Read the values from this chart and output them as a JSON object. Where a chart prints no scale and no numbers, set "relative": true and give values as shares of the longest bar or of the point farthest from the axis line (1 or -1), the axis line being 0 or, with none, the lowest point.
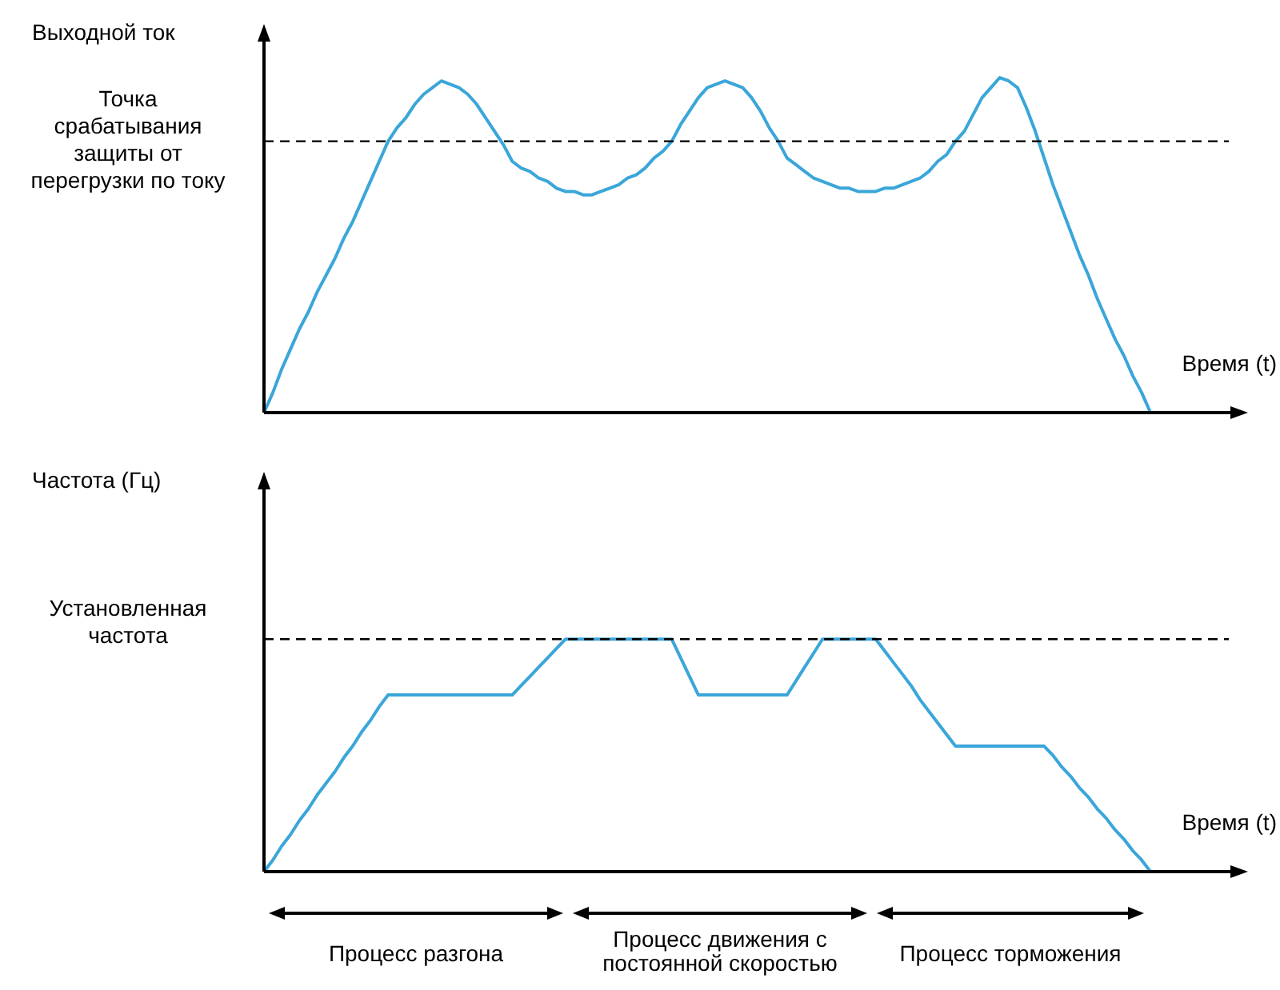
{
  "chart_data": [
    {
      "type": "line",
      "relative": true,
      "ylabel": "Выходной ток",
      "xlabel": "Время (t)",
      "categories": [
        null,
        null,
        null,
        null,
        null,
        null,
        null,
        null,
        null,
        null,
        null,
        null,
        null,
        null,
        null,
        null,
        null,
        null,
        null,
        null,
        null,
        null,
        null,
        null,
        null,
        null,
        null,
        null,
        null,
        null,
        null,
        null,
        null,
        null,
        null,
        null,
        null,
        null,
        null,
        null,
        null,
        null,
        null,
        null,
        null,
        null,
        null,
        null,
        null,
        null,
        null,
        null,
        null,
        null,
        null,
        null,
        null,
        null,
        null,
        null,
        null,
        null,
        null,
        null,
        null,
        null,
        null,
        null,
        null,
        null,
        null,
        null,
        null,
        null,
        null,
        null,
        null,
        null,
        null,
        null,
        null,
        null,
        null,
        null,
        null,
        null,
        null,
        null,
        null,
        null,
        null,
        null,
        null,
        null,
        null,
        null,
        null,
        null,
        null,
        null,
        null,
        null,
        null,
        null,
        null,
        null,
        null,
        null,
        null,
        null,
        null,
        null
      ],
      "series": [
        {
          "color": "#3aa6d9",
          "values": [
            0,
            0.06,
            0.13,
            0.19,
            0.25,
            0.3,
            0.36,
            0.41,
            0.46,
            0.52,
            0.57,
            0.63,
            0.69,
            0.75,
            0.81,
            0.85,
            0.88,
            0.92,
            0.95,
            0.97,
            0.99,
            0.98,
            0.97,
            0.95,
            0.92,
            0.88,
            0.84,
            0.8,
            0.75,
            0.73,
            0.72,
            0.7,
            0.69,
            0.67,
            0.66,
            0.66,
            0.65,
            0.65,
            0.66,
            0.67,
            0.68,
            0.7,
            0.71,
            0.73,
            0.76,
            0.78,
            0.81,
            0.86,
            0.9,
            0.94,
            0.97,
            0.98,
            0.99,
            0.98,
            0.97,
            0.94,
            0.9,
            0.85,
            0.81,
            0.76,
            0.74,
            0.72,
            0.7,
            0.69,
            0.68,
            0.67,
            0.67,
            0.66,
            0.66,
            0.66,
            0.67,
            0.67,
            0.68,
            0.69,
            0.7,
            0.72,
            0.75,
            0.77,
            0.81,
            0.84,
            0.89,
            0.94,
            0.97,
            1,
            0.99,
            0.97,
            0.91,
            0.84,
            0.76,
            0.68,
            0.61,
            0.54,
            0.47,
            0.41,
            0.34,
            0.28,
            0.22,
            0.17,
            0.11,
            0.06,
            0,
            null,
            null,
            null,
            null,
            null,
            null,
            null,
            null,
            null,
            null,
            null
          ]
        }
      ],
      "ref_lines": [
        {
          "axis": "y",
          "value": 0.81,
          "label": "Точка срабатывания защиты от перегрузки по току",
          "color": "#000000",
          "line_style": "dashed"
        }
      ]
    },
    {
      "type": "line",
      "relative": true,
      "ylabel": "Частота (Гц)",
      "xlabel": "Время (t)",
      "categories": [
        null,
        null,
        null,
        null,
        null,
        null,
        null,
        null,
        null,
        null,
        null,
        null,
        null,
        null,
        null,
        null,
        null,
        null,
        null,
        null,
        null,
        null,
        null,
        null,
        null,
        null,
        null,
        null,
        null,
        null,
        null,
        null,
        null,
        null,
        null,
        null,
        null,
        null,
        null,
        null,
        null,
        null,
        null,
        null,
        null,
        null,
        null,
        null,
        null,
        null,
        null,
        null,
        null,
        null,
        null,
        null,
        null,
        null,
        null,
        null,
        null,
        null,
        null,
        null,
        null,
        null,
        null,
        null,
        null,
        null,
        null,
        null,
        null,
        null,
        null,
        null,
        null,
        null,
        null,
        null,
        null,
        null,
        null,
        null,
        null,
        null,
        null,
        null,
        null,
        null,
        null,
        null,
        null,
        null,
        null,
        null,
        null,
        null,
        null,
        null,
        null,
        null,
        null,
        null,
        null,
        null,
        null,
        null,
        null,
        null,
        null,
        null
      ],
      "series": [
        {
          "color": "#3aa6d9",
          "values": [
            0,
            0.05,
            0.11,
            0.16,
            0.22,
            0.27,
            0.33,
            0.38,
            0.43,
            0.49,
            0.54,
            0.6,
            0.65,
            0.71,
            0.76,
            0.76,
            0.76,
            0.76,
            0.76,
            0.76,
            0.76,
            0.76,
            0.76,
            0.76,
            0.76,
            0.76,
            0.76,
            0.76,
            0.76,
            0.8,
            0.84,
            0.88,
            0.92,
            0.96,
            1,
            1,
            1,
            1,
            1,
            1,
            1,
            1,
            1,
            1,
            1,
            1,
            1,
            0.92,
            0.84,
            0.76,
            0.76,
            0.76,
            0.76,
            0.76,
            0.76,
            0.76,
            0.76,
            0.76,
            0.76,
            0.76,
            0.82,
            0.88,
            0.94,
            1,
            1,
            1,
            1,
            1,
            1,
            1,
            0.95,
            0.9,
            0.85,
            0.8,
            0.74,
            0.69,
            0.64,
            0.59,
            0.54,
            0.54,
            0.54,
            0.54,
            0.54,
            0.54,
            0.54,
            0.54,
            0.54,
            0.54,
            0.54,
            0.5,
            0.45,
            0.41,
            0.36,
            0.32,
            0.27,
            0.23,
            0.18,
            0.14,
            0.09,
            0.05,
            0,
            null,
            null,
            null,
            null,
            null,
            null,
            null,
            null,
            null,
            null,
            null
          ]
        }
      ],
      "ref_lines": [
        {
          "axis": "y",
          "value": 1,
          "label": "Установленная частота",
          "color": "#000000",
          "line_style": "dashed"
        }
      ],
      "annotations": [
        "Процесс разгона",
        "Процесс движения с постоянной скоростью",
        "Процесс торможения"
      ]
    }
  ]
}
